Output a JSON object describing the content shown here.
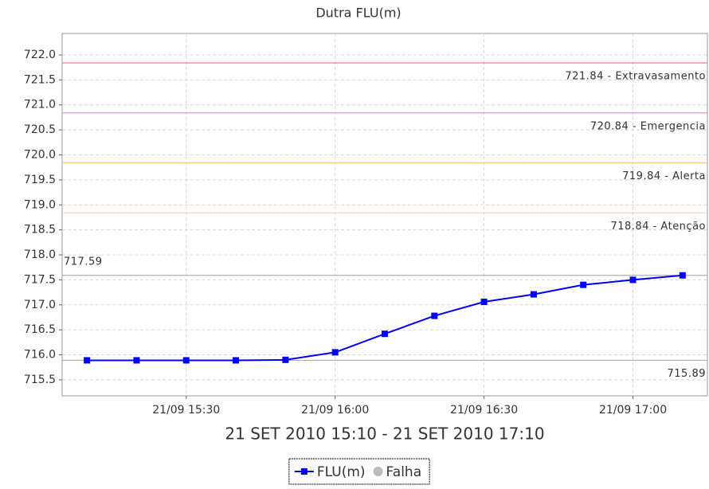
{
  "chart_data": {
    "type": "line",
    "title": "Dutra FLU(m)",
    "x_label": "21 SET 2010 15:10 - 21 SET 2010 17:10",
    "x": [
      "21/09 15:10",
      "21/09 15:20",
      "21/09 15:30",
      "21/09 15:40",
      "21/09 15:50",
      "21/09 16:00",
      "21/09 16:10",
      "21/09 16:20",
      "21/09 16:30",
      "21/09 16:40",
      "21/09 16:50",
      "21/09 17:00",
      "21/09 17:10"
    ],
    "series": [
      {
        "name": "FLU(m)",
        "color": "#0000ff",
        "marker": "square",
        "values": [
          715.89,
          715.89,
          715.89,
          715.89,
          715.9,
          716.05,
          716.42,
          716.78,
          717.06,
          717.21,
          717.4,
          717.5,
          717.59
        ]
      },
      {
        "name": "Falha",
        "color": "#bbbbbb",
        "marker": "circle",
        "values": [
          null,
          null,
          null,
          null,
          null,
          null,
          null,
          null,
          null,
          null,
          null,
          null,
          null
        ]
      }
    ],
    "xlim": [
      "21/09 15:05",
      "21/09 17:15"
    ],
    "xticks": [
      "21/09 15:30",
      "21/09 16:00",
      "21/09 16:30",
      "21/09 17:00"
    ],
    "ylim": [
      715.18,
      722.43
    ],
    "yticks": [
      {
        "value": 722,
        "label": "722.0"
      },
      721.5,
      {
        "value": 721,
        "label": "721.0"
      },
      720.5,
      {
        "value": 720,
        "label": "720.0"
      },
      719.5,
      {
        "value": 719,
        "label": "719.0"
      },
      718.5,
      {
        "value": 718,
        "label": "718.0"
      },
      717.5,
      {
        "value": 717,
        "label": "717.0"
      },
      716.5,
      {
        "value": 716,
        "label": "716.0"
      },
      715.5
    ],
    "grid": true,
    "reference_lines": [
      {
        "value": 721.84,
        "label": "721.84 - Extravasamento",
        "color": "#f08080",
        "label_anchor": "right"
      },
      {
        "value": 720.84,
        "label": "720.84 - Emergencia",
        "color": "#ff80ff",
        "label_anchor": "right"
      },
      {
        "value": 719.84,
        "label": "719.84 - Alerta",
        "color": "#ffc080",
        "label_anchor": "right"
      },
      {
        "value": 718.84,
        "label": "718.84 - Atenção",
        "color": "#f0e070",
        "label_anchor": "right"
      },
      {
        "value": 717.59,
        "label": "717.59",
        "color": "#b0b0b0",
        "label_anchor": "left"
      },
      {
        "value": 715.89,
        "label": "715.89",
        "color": "#b0b0b0",
        "label_anchor": "right"
      }
    ],
    "legend": "bottom"
  }
}
